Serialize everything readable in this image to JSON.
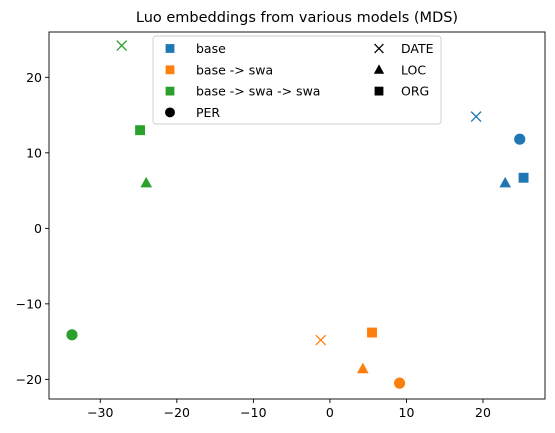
{
  "chart_data": {
    "type": "scatter",
    "title": "Luo embeddings from various models (MDS)",
    "xlabel": "",
    "ylabel": "",
    "xlim": [
      -36.7,
      28.1
    ],
    "ylim": [
      -22.6,
      26.0
    ],
    "xticks": [
      -30,
      -20,
      -10,
      0,
      10,
      20
    ],
    "yticks": [
      -20,
      -10,
      0,
      10,
      20
    ],
    "grid": false,
    "legend_position": "top-center",
    "model_series": [
      {
        "name": "base",
        "color": "#1f77b4"
      },
      {
        "name": "base -> swa",
        "color": "#ff7f0e"
      },
      {
        "name": "base -> swa -> swa",
        "color": "#2ca02c"
      }
    ],
    "entity_markers": [
      {
        "name": "PER",
        "marker": "circle"
      },
      {
        "name": "DATE",
        "marker": "x"
      },
      {
        "name": "LOC",
        "marker": "triangle"
      },
      {
        "name": "ORG",
        "marker": "square"
      }
    ],
    "points": [
      {
        "model": "base",
        "entity": "PER",
        "x": 24.8,
        "y": 11.8
      },
      {
        "model": "base",
        "entity": "DATE",
        "x": 19.1,
        "y": 14.8
      },
      {
        "model": "base",
        "entity": "LOC",
        "x": 22.9,
        "y": 6.0
      },
      {
        "model": "base",
        "entity": "ORG",
        "x": 25.3,
        "y": 6.7
      },
      {
        "model": "base -> swa",
        "entity": "PER",
        "x": 9.1,
        "y": -20.5
      },
      {
        "model": "base -> swa",
        "entity": "DATE",
        "x": -1.2,
        "y": -14.8
      },
      {
        "model": "base -> swa",
        "entity": "LOC",
        "x": 4.3,
        "y": -18.6
      },
      {
        "model": "base -> swa",
        "entity": "ORG",
        "x": 5.5,
        "y": -13.8
      },
      {
        "model": "base -> swa -> swa",
        "entity": "PER",
        "x": -33.7,
        "y": -14.1
      },
      {
        "model": "base -> swa -> swa",
        "entity": "DATE",
        "x": -27.2,
        "y": 24.2
      },
      {
        "model": "base -> swa -> swa",
        "entity": "LOC",
        "x": -24.0,
        "y": 6.0
      },
      {
        "model": "base -> swa -> swa",
        "entity": "ORG",
        "x": -24.8,
        "y": 13.0
      }
    ]
  }
}
